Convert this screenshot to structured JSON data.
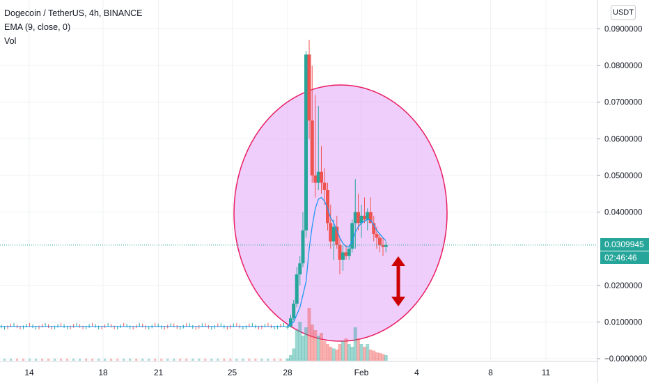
{
  "legend": {
    "symbol_line": "Dogecoin / TetherUS, 4h, BINANCE",
    "ema_line": "EMA (9, close, 0)",
    "vol_line": "Vol"
  },
  "currency_button": "USDT",
  "last_price": "0.0309945",
  "countdown": "02:46:46",
  "colors": {
    "up": "#26a69a",
    "down": "#ef5350",
    "ema": "#2196f3",
    "circle_fill": "#e1a6f8",
    "circle_stroke": "#e91e63",
    "arrow": "#cc0000",
    "last_price_bg": "#26a69a"
  },
  "chart_data": {
    "type": "candlestick",
    "y_ticks": [
      "0.0900000",
      "0.0800000",
      "0.0700000",
      "0.0600000",
      "0.0500000",
      "0.0400000",
      "0.0200000",
      "0.0100000",
      "0.0000000"
    ],
    "y_tick_values": [
      0.09,
      0.08,
      0.07,
      0.06,
      0.05,
      0.04,
      0.02,
      0.01,
      0.0
    ],
    "ylim": [
      0,
      0.095
    ],
    "x_ticks": [
      "14",
      "18",
      "21",
      "25",
      "28",
      "Feb",
      "4",
      "8",
      "11"
    ],
    "x_tick_days": [
      14,
      18,
      21,
      25,
      28,
      32,
      35,
      39,
      42
    ],
    "xlim_days": [
      11.3,
      45.0
    ],
    "grid": true,
    "annotations": [
      "circle-highlight",
      "double-arrow"
    ],
    "candles": [
      {
        "d": 28.0,
        "o": 0.0085,
        "h": 0.0095,
        "l": 0.008,
        "c": 0.0088
      },
      {
        "d": 28.17,
        "o": 0.0088,
        "h": 0.012,
        "l": 0.0085,
        "c": 0.011
      },
      {
        "d": 28.33,
        "o": 0.011,
        "h": 0.016,
        "l": 0.0105,
        "c": 0.015
      },
      {
        "d": 28.5,
        "o": 0.015,
        "h": 0.025,
        "l": 0.014,
        "c": 0.023
      },
      {
        "d": 28.67,
        "o": 0.023,
        "h": 0.028,
        "l": 0.02,
        "c": 0.026
      },
      {
        "d": 28.83,
        "o": 0.026,
        "h": 0.04,
        "l": 0.025,
        "c": 0.035
      },
      {
        "d": 29.0,
        "o": 0.035,
        "h": 0.084,
        "l": 0.033,
        "c": 0.083
      },
      {
        "d": 29.17,
        "o": 0.083,
        "h": 0.087,
        "l": 0.06,
        "c": 0.065
      },
      {
        "d": 29.33,
        "o": 0.065,
        "h": 0.08,
        "l": 0.048,
        "c": 0.05
      },
      {
        "d": 29.5,
        "o": 0.05,
        "h": 0.072,
        "l": 0.044,
        "c": 0.048
      },
      {
        "d": 29.67,
        "o": 0.048,
        "h": 0.069,
        "l": 0.046,
        "c": 0.051
      },
      {
        "d": 29.83,
        "o": 0.051,
        "h": 0.058,
        "l": 0.045,
        "c": 0.048
      },
      {
        "d": 30.0,
        "o": 0.048,
        "h": 0.052,
        "l": 0.042,
        "c": 0.046
      },
      {
        "d": 30.17,
        "o": 0.046,
        "h": 0.048,
        "l": 0.035,
        "c": 0.037
      },
      {
        "d": 30.33,
        "o": 0.037,
        "h": 0.042,
        "l": 0.03,
        "c": 0.032
      },
      {
        "d": 30.5,
        "o": 0.032,
        "h": 0.038,
        "l": 0.027,
        "c": 0.036
      },
      {
        "d": 30.67,
        "o": 0.036,
        "h": 0.039,
        "l": 0.03,
        "c": 0.031
      },
      {
        "d": 30.83,
        "o": 0.031,
        "h": 0.033,
        "l": 0.023,
        "c": 0.027
      },
      {
        "d": 31.0,
        "o": 0.027,
        "h": 0.031,
        "l": 0.024,
        "c": 0.029
      },
      {
        "d": 31.17,
        "o": 0.029,
        "h": 0.031,
        "l": 0.027,
        "c": 0.028
      },
      {
        "d": 31.33,
        "o": 0.028,
        "h": 0.031,
        "l": 0.027,
        "c": 0.03
      },
      {
        "d": 31.5,
        "o": 0.03,
        "h": 0.038,
        "l": 0.029,
        "c": 0.037
      },
      {
        "d": 31.67,
        "o": 0.037,
        "h": 0.049,
        "l": 0.03,
        "c": 0.04
      },
      {
        "d": 31.83,
        "o": 0.04,
        "h": 0.045,
        "l": 0.035,
        "c": 0.037
      },
      {
        "d": 32.0,
        "o": 0.037,
        "h": 0.042,
        "l": 0.033,
        "c": 0.039
      },
      {
        "d": 32.17,
        "o": 0.039,
        "h": 0.044,
        "l": 0.037,
        "c": 0.038
      },
      {
        "d": 32.33,
        "o": 0.038,
        "h": 0.041,
        "l": 0.035,
        "c": 0.04
      },
      {
        "d": 32.5,
        "o": 0.04,
        "h": 0.044,
        "l": 0.037,
        "c": 0.037
      },
      {
        "d": 32.67,
        "o": 0.037,
        "h": 0.039,
        "l": 0.032,
        "c": 0.034
      },
      {
        "d": 32.83,
        "o": 0.034,
        "h": 0.036,
        "l": 0.03,
        "c": 0.033
      },
      {
        "d": 33.0,
        "o": 0.033,
        "h": 0.034,
        "l": 0.029,
        "c": 0.031
      },
      {
        "d": 33.17,
        "o": 0.031,
        "h": 0.033,
        "l": 0.028,
        "c": 0.0305
      },
      {
        "d": 33.33,
        "o": 0.0305,
        "h": 0.032,
        "l": 0.029,
        "c": 0.0309945
      }
    ],
    "ema": [
      {
        "d": 28.0,
        "v": 0.0088
      },
      {
        "d": 28.33,
        "v": 0.01
      },
      {
        "d": 28.67,
        "v": 0.014
      },
      {
        "d": 29.0,
        "v": 0.021
      },
      {
        "d": 29.17,
        "v": 0.03
      },
      {
        "d": 29.33,
        "v": 0.036
      },
      {
        "d": 29.5,
        "v": 0.041
      },
      {
        "d": 29.67,
        "v": 0.0435
      },
      {
        "d": 29.83,
        "v": 0.044
      },
      {
        "d": 30.0,
        "v": 0.043
      },
      {
        "d": 30.17,
        "v": 0.041
      },
      {
        "d": 30.33,
        "v": 0.0385
      },
      {
        "d": 30.5,
        "v": 0.037
      },
      {
        "d": 30.67,
        "v": 0.035
      },
      {
        "d": 30.83,
        "v": 0.033
      },
      {
        "d": 31.0,
        "v": 0.0315
      },
      {
        "d": 31.17,
        "v": 0.0305
      },
      {
        "d": 31.33,
        "v": 0.0305
      },
      {
        "d": 31.5,
        "v": 0.032
      },
      {
        "d": 31.67,
        "v": 0.0345
      },
      {
        "d": 31.83,
        "v": 0.036
      },
      {
        "d": 32.0,
        "v": 0.037
      },
      {
        "d": 32.17,
        "v": 0.0375
      },
      {
        "d": 32.33,
        "v": 0.038
      },
      {
        "d": 32.5,
        "v": 0.0378
      },
      {
        "d": 32.67,
        "v": 0.0365
      },
      {
        "d": 32.83,
        "v": 0.035
      },
      {
        "d": 33.0,
        "v": 0.034
      },
      {
        "d": 33.17,
        "v": 0.033
      },
      {
        "d": 33.33,
        "v": 0.0322
      }
    ],
    "flat_price": 0.0088,
    "flat_from_day": 11.3,
    "flat_to_day": 27.9,
    "volume_rel": [
      0.04,
      0.1,
      0.22,
      0.55,
      0.7,
      0.45,
      0.6,
      0.95,
      0.65,
      0.55,
      0.45,
      0.5,
      0.35,
      0.3,
      0.25,
      0.22,
      0.2,
      0.3,
      0.35,
      0.4,
      0.3,
      0.25,
      0.6,
      0.4,
      0.3,
      0.25,
      0.3,
      0.2,
      0.18,
      0.15,
      0.14,
      0.12,
      0.1
    ]
  }
}
